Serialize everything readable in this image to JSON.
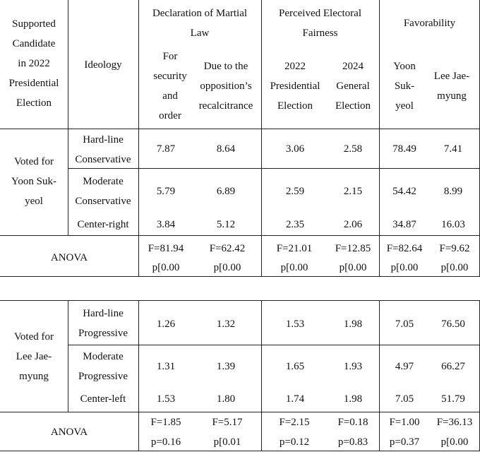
{
  "headers": {
    "candidate": [
      "Supported",
      "Candidate",
      "in 2022",
      "Presidential",
      "Election"
    ],
    "ideology": "Ideology",
    "martial_law_group": [
      "Declaration of Martial",
      "Law"
    ],
    "fairness_group": [
      "Perceived Electoral",
      "Fairness"
    ],
    "favorability_group": "Favorability",
    "security": [
      "For",
      "security",
      "and",
      "order"
    ],
    "opposition": [
      "Due to the",
      "opposition’s",
      "recalcitrance"
    ],
    "pres2022": [
      "2022",
      "Presidential",
      "Election"
    ],
    "gen2024": [
      "2024",
      "General",
      "Election"
    ],
    "yoon": [
      "Yoon",
      "Suk-",
      "yeol"
    ],
    "lee": [
      "Lee Jae-",
      "myung"
    ]
  },
  "group1": {
    "label": [
      "Voted for",
      "Yoon Suk-",
      "yeol"
    ],
    "rows": [
      {
        "ideology": [
          "Hard-line",
          "Conservative"
        ],
        "values": [
          "7.87",
          "8.64",
          "3.06",
          "2.58",
          "78.49",
          "7.41"
        ]
      },
      {
        "ideology": [
          "Moderate",
          "Conservative"
        ],
        "values": [
          "5.79",
          "6.89",
          "2.59",
          "2.15",
          "54.42",
          "8.99"
        ]
      },
      {
        "ideology": [
          "Center-right"
        ],
        "values": [
          "3.84",
          "5.12",
          "2.35",
          "2.06",
          "34.87",
          "16.03"
        ]
      }
    ],
    "anova_label": "ANOVA",
    "anova_f": [
      "F=81.94",
      "F=62.42",
      "F=21.01",
      "F=12.85",
      "F=82.64",
      "F=9.62"
    ],
    "anova_p": [
      "p[0.00",
      "p[0.00",
      "p[0.00",
      "p[0.00",
      "p[0.00",
      "p[0.00"
    ]
  },
  "group2": {
    "label": [
      "Voted for",
      "Lee Jae-",
      "myung"
    ],
    "rows": [
      {
        "ideology": [
          "Hard-line",
          "Progressive"
        ],
        "values": [
          "1.26",
          "1.32",
          "1.53",
          "1.98",
          "7.05",
          "76.50"
        ]
      },
      {
        "ideology": [
          "Moderate",
          "Progressive"
        ],
        "values": [
          "1.31",
          "1.39",
          "1.65",
          "1.93",
          "4.97",
          "66.27"
        ]
      },
      {
        "ideology": [
          "Center-left"
        ],
        "values": [
          "1.53",
          "1.80",
          "1.74",
          "1.98",
          "7.05",
          "51.79"
        ]
      }
    ],
    "anova_label": "ANOVA",
    "anova_f": [
      "F=1.85",
      "F=5.17",
      "F=2.15",
      "F=0.18",
      "F=1.00",
      "F=36.13"
    ],
    "anova_p": [
      "p=0.16",
      "p[0.01",
      "p=0.12",
      "p=0.83",
      "p=0.37",
      "p[0.00"
    ]
  }
}
